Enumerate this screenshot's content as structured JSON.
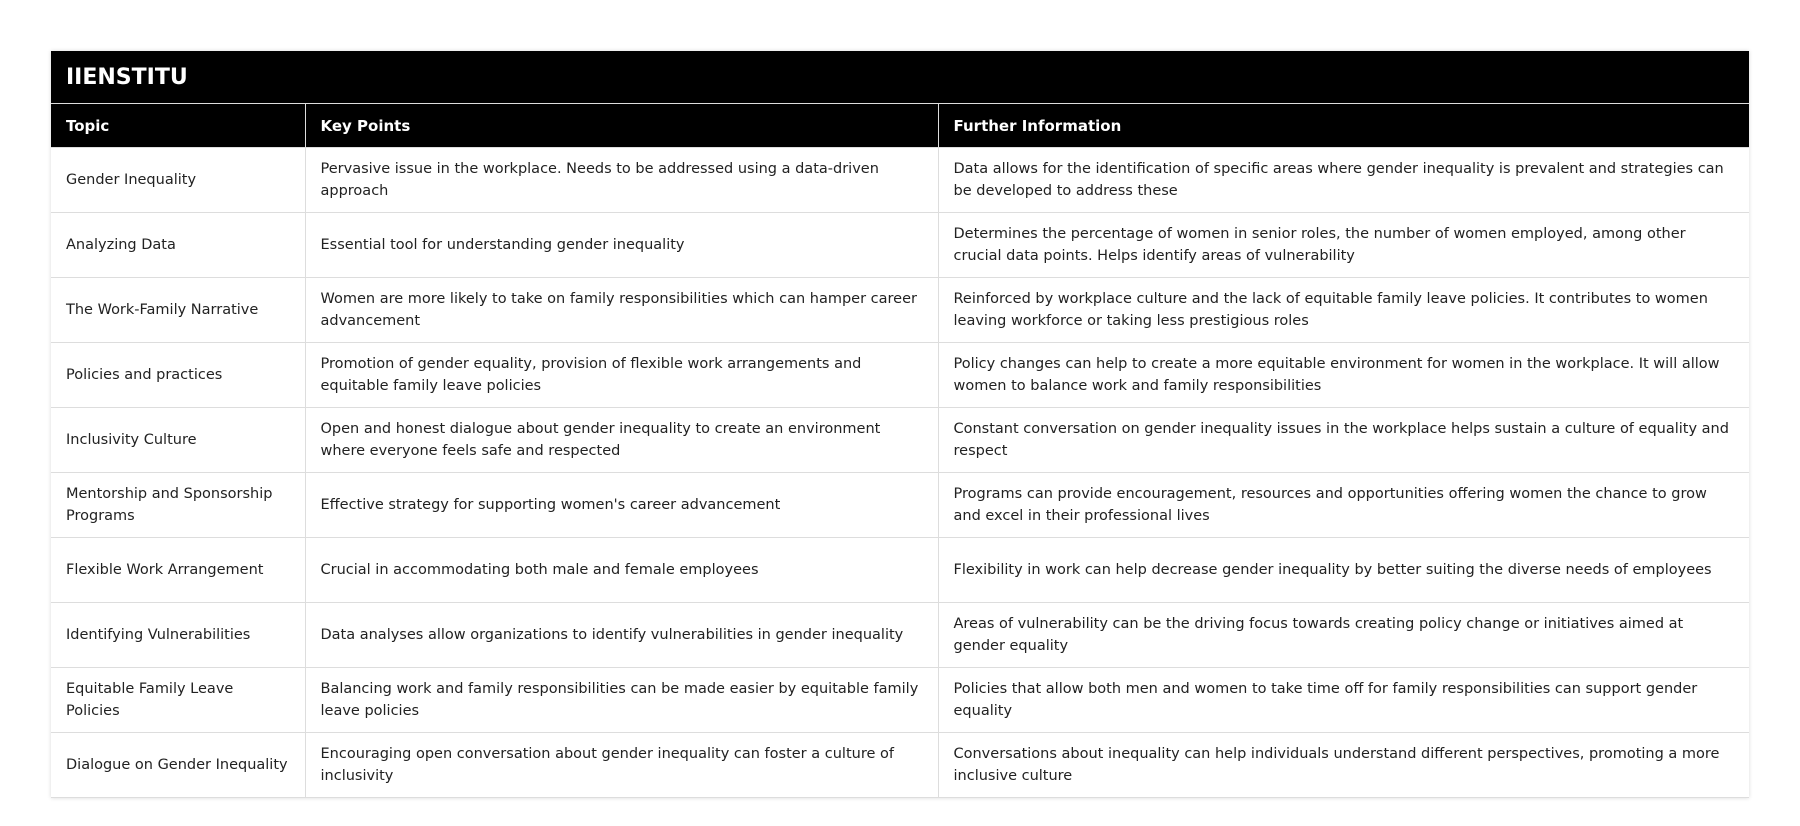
{
  "title": "IIENSTITU",
  "headers": [
    "Topic",
    "Key Points",
    "Further Information"
  ],
  "rows": [
    [
      "Gender Inequality",
      "Pervasive issue in the workplace. Needs to be addressed using a data-driven approach",
      "Data allows for the identification of specific areas where gender inequality is prevalent and strategies can be developed to address these"
    ],
    [
      "Analyzing Data",
      "Essential tool for understanding gender inequality",
      "Determines the percentage of women in senior roles, the number of women employed, among other crucial data points. Helps identify areas of vulnerability"
    ],
    [
      "The Work-Family Narrative",
      "Women are more likely to take on family responsibilities which can hamper career advancement",
      "Reinforced by workplace culture and the lack of equitable family leave policies. It contributes to women leaving workforce or taking less prestigious roles"
    ],
    [
      "Policies and practices",
      "Promotion of gender equality, provision of flexible work arrangements and equitable family leave policies",
      "Policy changes can help to create a more equitable environment for women in the workplace. It will allow women to balance work and family responsibilities"
    ],
    [
      "Inclusivity Culture",
      "Open and honest dialogue about gender inequality to create an environment where everyone feels safe and respected",
      "Constant conversation on gender inequality issues in the workplace helps sustain a culture of equality and respect"
    ],
    [
      "Mentorship and Sponsorship Programs",
      "Effective strategy for supporting women's career advancement",
      "Programs can provide encouragement, resources and opportunities offering women the chance to grow and excel in their professional lives"
    ],
    [
      "Flexible Work Arrangement",
      "Crucial in accommodating both male and female employees",
      "Flexibility in work can help decrease gender inequality by better suiting the diverse needs of employees"
    ],
    [
      "Identifying Vulnerabilities",
      "Data analyses allow organizations to identify vulnerabilities in gender inequality",
      "Areas of vulnerability can be the driving focus towards creating policy change or initiatives aimed at gender equality"
    ],
    [
      "Equitable Family Leave Policies",
      "Balancing work and family responsibilities can be made easier by equitable family leave policies",
      "Policies that allow both men and women to take time off for family responsibilities can support gender equality"
    ],
    [
      "Dialogue on Gender Inequality",
      "Encouraging open conversation about gender inequality can foster a culture of inclusivity",
      "Conversations about inequality can help individuals understand different perspectives, promoting a more inclusive culture"
    ]
  ]
}
